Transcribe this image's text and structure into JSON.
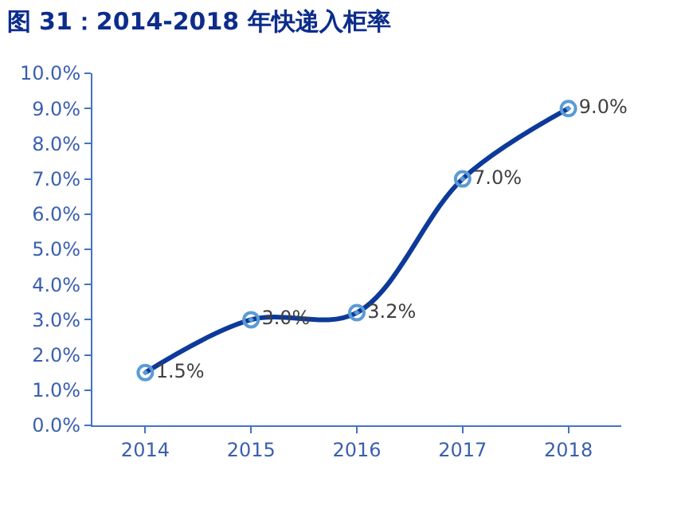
{
  "chart_data": {
    "type": "line",
    "title": "图 31：2014-2018 年快递入柜率",
    "categories": [
      "2014",
      "2015",
      "2016",
      "2017",
      "2018"
    ],
    "series": [
      {
        "color": "#0d3a9a",
        "values": [
          1.5,
          3.0,
          3.2,
          7.0,
          9.0
        ],
        "value_labels": [
          "1.5%",
          "3.0%",
          "3.2%",
          "7.0%",
          "9.0%"
        ]
      }
    ],
    "ylim": [
      0,
      10
    ],
    "yticks": [
      {
        "value": 0,
        "label": "0.0%"
      },
      {
        "value": 1,
        "label": "1.0%"
      },
      {
        "value": 2,
        "label": "2.0%"
      },
      {
        "value": 3,
        "label": "3.0%"
      },
      {
        "value": 4,
        "label": "4.0%"
      },
      {
        "value": 5,
        "label": "5.0%"
      },
      {
        "value": 6,
        "label": "6.0%"
      },
      {
        "value": 7,
        "label": "7.0%"
      },
      {
        "value": 8,
        "label": "8.0%"
      },
      {
        "value": 9,
        "label": "9.0%"
      },
      {
        "value": 10,
        "label": "10.0%"
      }
    ],
    "marker": "circle",
    "line_style": "solid"
  }
}
